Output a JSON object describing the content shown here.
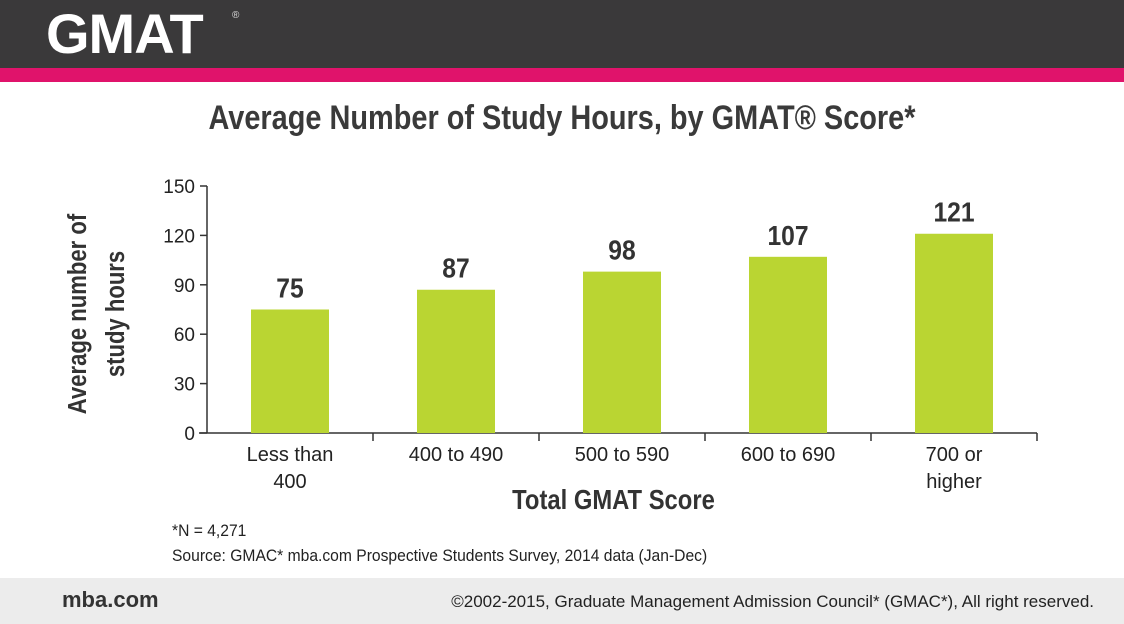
{
  "header": {
    "logo": "GMAT",
    "logo_mark": "®"
  },
  "colors": {
    "header": "#3a393a",
    "accent": "#e0136b",
    "bar": "#bad532"
  },
  "chart_data": {
    "type": "bar",
    "title": "Average Number of Study Hours, by GMAT® Score*",
    "xlabel": "Total GMAT Score",
    "ylabel": [
      "Average number of",
      "study hours"
    ],
    "categories": [
      [
        "Less than",
        "400"
      ],
      [
        "400 to 490"
      ],
      [
        "500 to 590"
      ],
      [
        "600 to 690"
      ],
      [
        "700 or",
        "higher"
      ]
    ],
    "values": [
      75,
      87,
      98,
      107,
      121
    ],
    "ylim": [
      0,
      150
    ],
    "yticks": [
      0,
      30,
      60,
      90,
      120,
      150
    ],
    "grid": false
  },
  "notes": {
    "n": "*N = 4,271",
    "source": "Source: GMAC* mba.com Prospective Students Survey, 2014 data (Jan-Dec)"
  },
  "footer": {
    "site": "mba.com",
    "copyright": "©2002-2015, Graduate Management Admission Council* (GMAC*), All right reserved."
  }
}
